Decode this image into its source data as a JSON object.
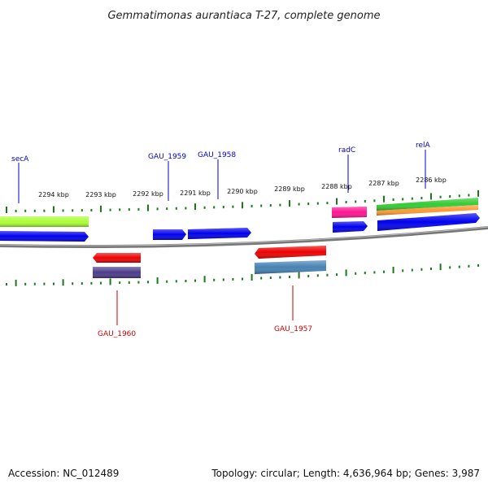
{
  "title": "Gemmatimonas aurantiaca T-27, complete genome",
  "footer": {
    "accession": "Accession: NC_012489",
    "topology": "Topology: circular; Length: 4,636,964 bp; Genes: 3,987"
  },
  "colors": {
    "backbone": "#808080",
    "ticks": "#1a7a1a",
    "plus_label": "#0000cc",
    "minus_label": "#cc0000"
  },
  "scale_labels": [
    "2294 kbp",
    "2293 kbp",
    "2292 kbp",
    "2291 kbp",
    "2290 kbp",
    "2289 kbp",
    "2288 kbp",
    "2287 kbp",
    "2286 kbp"
  ],
  "gene_labels": {
    "secA": "secA",
    "gau1959": "GAU_1959",
    "gau1958": "GAU_1958",
    "radC": "radC",
    "relA": "relA",
    "gau1960": "GAU_1960",
    "gau1957": "GAU_1957"
  },
  "feature_colors": {
    "lime": "#aaff33",
    "blue": "#0000ee",
    "green": "#33cc33",
    "orange": "#ff9933",
    "magenta": "#ff1493",
    "red": "#ee0000",
    "purple": "#4b3c8a",
    "steelblue": "#4682b4"
  }
}
